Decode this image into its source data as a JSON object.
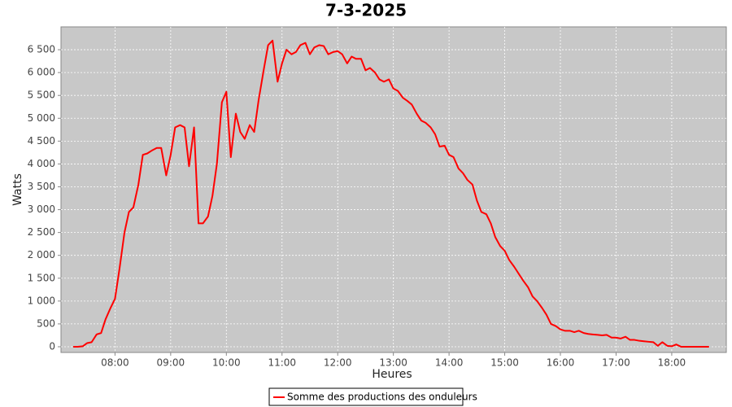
{
  "chart_data": {
    "type": "line",
    "title": "7-3-2025",
    "x_label": "Heures",
    "y_label": "Watts",
    "x": [
      7.25,
      7.33,
      7.42,
      7.5,
      7.58,
      7.67,
      7.75,
      7.83,
      7.92,
      8.0,
      8.08,
      8.17,
      8.25,
      8.33,
      8.42,
      8.5,
      8.58,
      8.67,
      8.75,
      8.83,
      8.92,
      9.0,
      9.08,
      9.17,
      9.25,
      9.33,
      9.42,
      9.5,
      9.58,
      9.67,
      9.75,
      9.83,
      9.92,
      10.0,
      10.08,
      10.17,
      10.25,
      10.33,
      10.42,
      10.5,
      10.58,
      10.67,
      10.75,
      10.83,
      10.92,
      11.0,
      11.08,
      11.17,
      11.25,
      11.33,
      11.42,
      11.5,
      11.58,
      11.67,
      11.75,
      11.83,
      11.92,
      12.0,
      12.08,
      12.17,
      12.25,
      12.33,
      12.42,
      12.5,
      12.58,
      12.67,
      12.75,
      12.83,
      12.92,
      13.0,
      13.08,
      13.17,
      13.25,
      13.33,
      13.42,
      13.5,
      13.58,
      13.67,
      13.75,
      13.83,
      13.92,
      14.0,
      14.08,
      14.17,
      14.25,
      14.33,
      14.42,
      14.5,
      14.58,
      14.67,
      14.75,
      14.83,
      14.92,
      15.0,
      15.08,
      15.17,
      15.25,
      15.33,
      15.42,
      15.5,
      15.58,
      15.67,
      15.75,
      15.83,
      15.92,
      16.0,
      16.08,
      16.17,
      16.25,
      16.33,
      16.42,
      16.5,
      16.58,
      16.67,
      16.75,
      16.83,
      16.92,
      17.0,
      17.08,
      17.17,
      17.25,
      17.33,
      17.42,
      17.5,
      17.58,
      17.67,
      17.75,
      17.83,
      17.92,
      18.0,
      18.08,
      18.17,
      18.25,
      18.33,
      18.42,
      18.5,
      18.58,
      18.67
    ],
    "series": [
      {
        "name": "Somme des productions des onduleurs",
        "color": "#ff0000",
        "values": [
          0,
          0,
          10,
          80,
          100,
          270,
          300,
          600,
          850,
          1050,
          1700,
          2500,
          2950,
          3050,
          3550,
          4200,
          4230,
          4300,
          4350,
          4350,
          3750,
          4200,
          4800,
          4850,
          4800,
          3950,
          4800,
          2700,
          2700,
          2850,
          3300,
          4000,
          5350,
          5580,
          4150,
          5100,
          4700,
          4550,
          4850,
          4700,
          5400,
          6050,
          6600,
          6700,
          5800,
          6200,
          6500,
          6400,
          6450,
          6600,
          6650,
          6400,
          6550,
          6600,
          6580,
          6400,
          6450,
          6470,
          6400,
          6200,
          6350,
          6300,
          6300,
          6050,
          6100,
          6000,
          5850,
          5800,
          5850,
          5650,
          5600,
          5450,
          5380,
          5300,
          5100,
          4950,
          4900,
          4800,
          4650,
          4380,
          4400,
          4200,
          4150,
          3900,
          3800,
          3650,
          3550,
          3200,
          2950,
          2900,
          2700,
          2400,
          2200,
          2100,
          1900,
          1750,
          1600,
          1450,
          1300,
          1100,
          1000,
          850,
          700,
          500,
          450,
          380,
          350,
          350,
          320,
          350,
          300,
          280,
          270,
          260,
          250,
          260,
          200,
          200,
          180,
          220,
          150,
          150,
          130,
          120,
          110,
          100,
          20,
          100,
          20,
          10,
          50,
          0,
          0,
          0,
          0,
          0,
          0,
          0
        ]
      }
    ],
    "xlim": [
      7.03,
      18.98
    ],
    "ylim": [
      -125,
      7000
    ],
    "xticks": [
      {
        "value": 8,
        "label": "08:00"
      },
      {
        "value": 9,
        "label": "09:00"
      },
      {
        "value": 10,
        "label": "10:00"
      },
      {
        "value": 11,
        "label": "11:00"
      },
      {
        "value": 12,
        "label": "12:00"
      },
      {
        "value": 13,
        "label": "13:00"
      },
      {
        "value": 14,
        "label": "14:00"
      },
      {
        "value": 15,
        "label": "15:00"
      },
      {
        "value": 16,
        "label": "16:00"
      },
      {
        "value": 17,
        "label": "17:00"
      },
      {
        "value": 18,
        "label": "18:00"
      }
    ],
    "yticks": [
      0,
      500,
      {
        "value": 1000,
        "label": "1 000"
      },
      {
        "value": 1500,
        "label": "1 500"
      },
      {
        "value": 2000,
        "label": "2 000"
      },
      {
        "value": 2500,
        "label": "2 500"
      },
      {
        "value": 3000,
        "label": "3 000"
      },
      {
        "value": 3500,
        "label": "3 500"
      },
      {
        "value": 4000,
        "label": "4 000"
      },
      {
        "value": 4500,
        "label": "4 500"
      },
      {
        "value": 5000,
        "label": "5 000"
      },
      {
        "value": 5500,
        "label": "5 500"
      },
      {
        "value": 6000,
        "label": "6 000"
      },
      {
        "value": 6500,
        "label": "6 500"
      }
    ],
    "grid": true
  }
}
